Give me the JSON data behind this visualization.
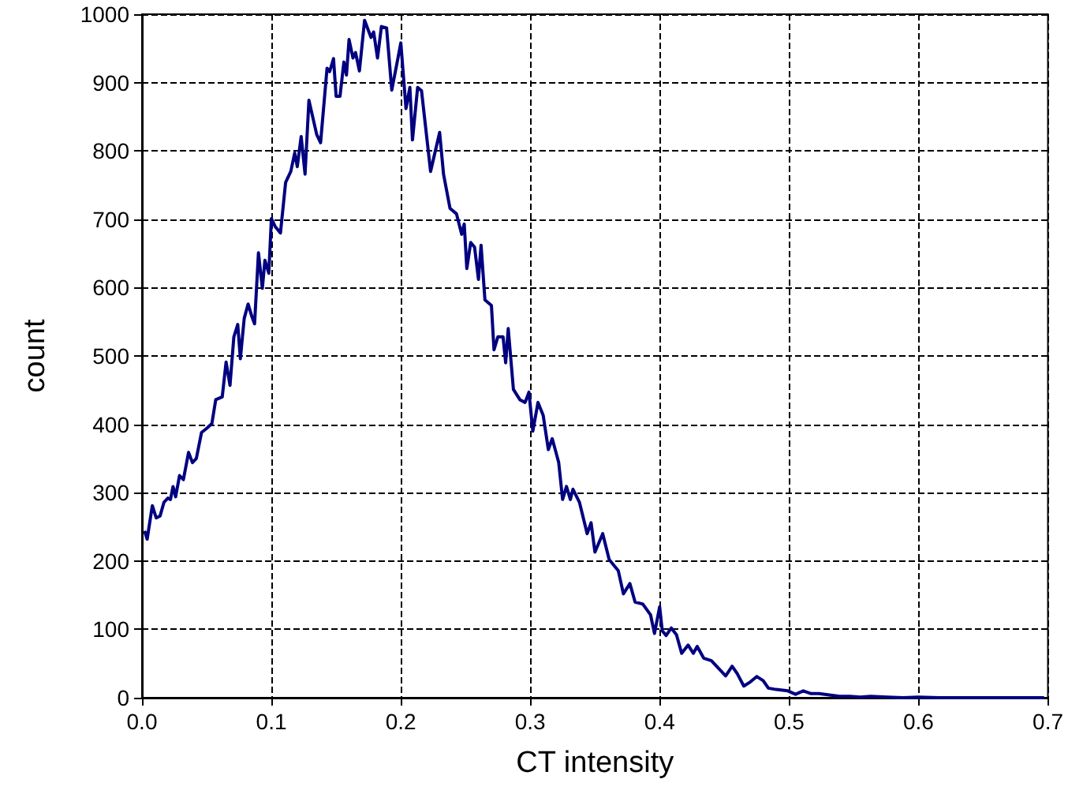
{
  "chart_data": {
    "type": "line",
    "xlabel": "CT intensity",
    "ylabel": "count",
    "grid": true,
    "marker": "none",
    "line_style": "solid",
    "xlim": [
      0,
      0.7
    ],
    "ylim": [
      0,
      1000
    ],
    "xticks": [
      {
        "value": 0,
        "label": "0.0"
      },
      {
        "value": 0.1,
        "label": "0.1"
      },
      {
        "value": 0.2,
        "label": "0.2"
      },
      {
        "value": 0.3,
        "label": "0.3"
      },
      {
        "value": 0.4,
        "label": "0.4"
      },
      {
        "value": 0.5,
        "label": "0.5"
      },
      {
        "value": 0.6,
        "label": "0.6"
      },
      {
        "value": 0.7,
        "label": "0.7"
      }
    ],
    "yticks": [
      0,
      100,
      200,
      300,
      400,
      500,
      600,
      700,
      800,
      900,
      1000
    ],
    "series": [
      {
        "color": "#000080",
        "x": [
          0.002,
          0.004,
          0.008,
          0.011,
          0.014,
          0.017,
          0.02,
          0.022,
          0.024,
          0.026,
          0.029,
          0.032,
          0.036,
          0.039,
          0.042,
          0.046,
          0.05,
          0.054,
          0.057,
          0.062,
          0.065,
          0.068,
          0.071,
          0.074,
          0.076,
          0.079,
          0.082,
          0.085,
          0.087,
          0.09,
          0.093,
          0.095,
          0.098,
          0.1,
          0.103,
          0.107,
          0.111,
          0.115,
          0.118,
          0.12,
          0.123,
          0.126,
          0.129,
          0.135,
          0.138,
          0.143,
          0.145,
          0.148,
          0.15,
          0.153,
          0.156,
          0.158,
          0.16,
          0.163,
          0.165,
          0.168,
          0.172,
          0.177,
          0.179,
          0.182,
          0.185,
          0.189,
          0.193,
          0.197,
          0.2,
          0.204,
          0.207,
          0.209,
          0.213,
          0.216,
          0.223,
          0.23,
          0.233,
          0.238,
          0.243,
          0.247,
          0.249,
          0.251,
          0.254,
          0.257,
          0.26,
          0.262,
          0.265,
          0.27,
          0.272,
          0.275,
          0.279,
          0.281,
          0.283,
          0.287,
          0.292,
          0.296,
          0.299,
          0.302,
          0.306,
          0.31,
          0.314,
          0.317,
          0.322,
          0.325,
          0.328,
          0.331,
          0.333,
          0.338,
          0.344,
          0.347,
          0.35,
          0.356,
          0.361,
          0.368,
          0.372,
          0.377,
          0.381,
          0.387,
          0.393,
          0.396,
          0.4,
          0.402,
          0.405,
          0.409,
          0.413,
          0.417,
          0.422,
          0.426,
          0.429,
          0.434,
          0.44,
          0.446,
          0.451,
          0.456,
          0.46,
          0.465,
          0.47,
          0.475,
          0.48,
          0.484,
          0.49,
          0.499,
          0.505,
          0.511,
          0.517,
          0.523,
          0.531,
          0.539,
          0.547,
          0.555,
          0.563,
          0.576,
          0.588,
          0.6,
          0.616,
          0.636,
          0.657,
          0.677,
          0.697
        ],
        "values": [
          244,
          232,
          281,
          263,
          266,
          286,
          292,
          290,
          309,
          294,
          325,
          319,
          359,
          344,
          350,
          388,
          394,
          401,
          436,
          440,
          491,
          457,
          528,
          546,
          496,
          555,
          576,
          557,
          547,
          651,
          599,
          640,
          621,
          701,
          689,
          680,
          754,
          770,
          797,
          777,
          821,
          766,
          874,
          824,
          812,
          921,
          916,
          935,
          880,
          880,
          930,
          911,
          963,
          936,
          944,
          917,
          991,
          966,
          974,
          936,
          982,
          980,
          889,
          928,
          958,
          862,
          893,
          816,
          893,
          888,
          770,
          827,
          766,
          716,
          708,
          678,
          693,
          628,
          666,
          659,
          612,
          662,
          582,
          574,
          509,
          528,
          528,
          490,
          540,
          451,
          436,
          432,
          447,
          390,
          432,
          413,
          363,
          379,
          344,
          290,
          309,
          290,
          305,
          286,
          240,
          256,
          213,
          240,
          202,
          186,
          152,
          167,
          140,
          137,
          121,
          94,
          133,
          98,
          91,
          102,
          92,
          65,
          77,
          65,
          75,
          58,
          54,
          42,
          32,
          46,
          35,
          17,
          23,
          31,
          25,
          14,
          12,
          10,
          5,
          10,
          6,
          6,
          4,
          2,
          2,
          1,
          2,
          1,
          0,
          1,
          0,
          0,
          0,
          0,
          0
        ]
      }
    ]
  }
}
